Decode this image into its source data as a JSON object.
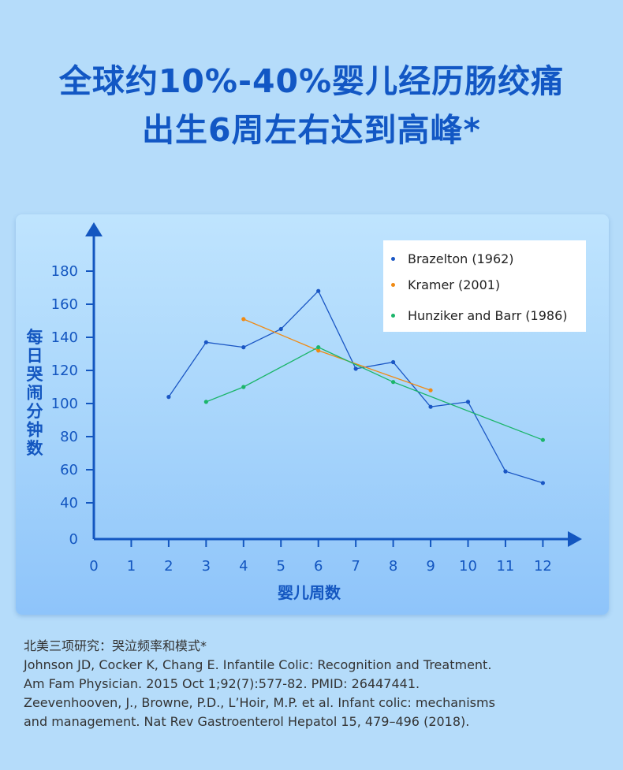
{
  "headline": {
    "line1": "全球约10%-40%婴儿经历肠绞痛",
    "line2": "出生6周左右达到高峰*"
  },
  "colors": {
    "background": "#b5dcfa",
    "headline": "#1257c4",
    "axis": "#1356c0",
    "brazelton": "#1a56c4",
    "kramer": "#f08a13",
    "hunziker": "#1bb56a"
  },
  "chart_data": {
    "type": "line",
    "ylabel": "每日哭闹分钟数",
    "xlabel": "婴儿周数",
    "x_ticks": [
      "0",
      "1",
      "2",
      "3",
      "4",
      "5",
      "6",
      "7",
      "8",
      "9",
      "10",
      "11",
      "12"
    ],
    "y_ticks": [
      "0",
      "40",
      "60",
      "80",
      "100",
      "120",
      "140",
      "160",
      "180"
    ],
    "legend_position": "top-right",
    "series": [
      {
        "name": "Brazelton (1962)",
        "color": "#1a56c4",
        "points": [
          [
            2,
            104
          ],
          [
            3,
            137
          ],
          [
            4,
            134
          ],
          [
            5,
            145
          ],
          [
            6,
            168
          ],
          [
            7,
            121
          ],
          [
            8,
            125
          ],
          [
            9,
            98
          ],
          [
            10,
            101
          ],
          [
            11,
            59
          ],
          [
            12,
            52
          ]
        ]
      },
      {
        "name": "Kramer (2001)",
        "color": "#f08a13",
        "points": [
          [
            4,
            151
          ],
          [
            6,
            132
          ],
          [
            9,
            108
          ]
        ]
      },
      {
        "name": "Hunziker and Barr (1986)",
        "color": "#1bb56a",
        "points": [
          [
            3,
            101
          ],
          [
            4,
            110
          ],
          [
            6,
            134
          ],
          [
            8,
            113
          ],
          [
            12,
            78
          ]
        ]
      }
    ]
  },
  "references": {
    "line1": "北美三项研究：哭泣频率和模式*",
    "line2": "Johnson JD, Cocker K, Chang E. Infantile Colic: Recognition and Treatment.",
    "line3": "Am Fam Physician. 2015 Oct 1;92(7):577-82. PMID: 26447441.",
    "line4": "Zeevenhooven, J., Browne, P.D., L’Hoir, M.P. et al. Infant colic: mechanisms",
    "line5": "and management. Nat Rev Gastroenterol Hepatol 15, 479–496 (2018)."
  }
}
